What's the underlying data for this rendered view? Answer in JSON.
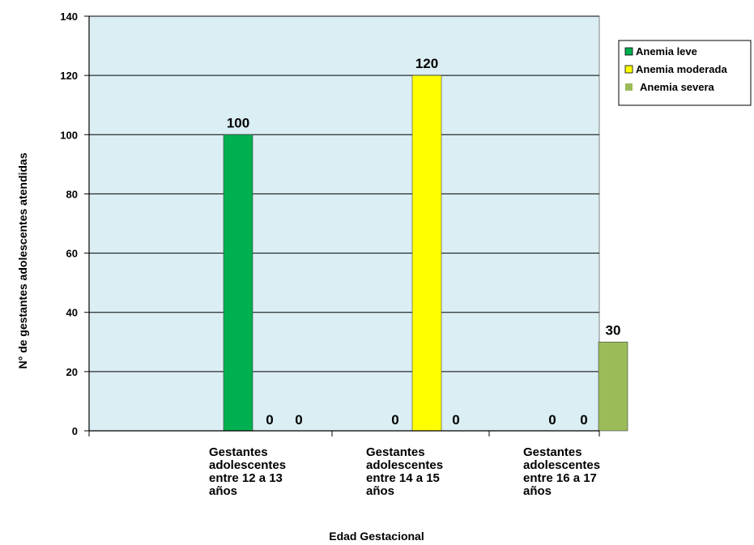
{
  "chart_data": {
    "type": "bar",
    "categories": [
      [
        "Gestantes",
        "adolescentes",
        "entre 12 a 13",
        "años"
      ],
      [
        "Gestantes",
        "adolescentes",
        "entre 14 a 15",
        "años"
      ],
      [
        "Gestantes",
        "adolescentes",
        "entre 16 a 17",
        "años"
      ]
    ],
    "series": [
      {
        "name": "Anemia leve",
        "color": "#00b050",
        "values": [
          100,
          0,
          0
        ]
      },
      {
        "name": "Anemia moderada",
        "color": "#ffff00",
        "values": [
          0,
          120,
          0
        ]
      },
      {
        "name": "Anemia severa",
        "color": "#9bbb59",
        "values": [
          0,
          0,
          30
        ]
      }
    ],
    "data_labels": [
      "100",
      "0",
      "0",
      "0",
      "120",
      "0",
      "0",
      "0",
      "30"
    ],
    "y_ticks": [
      "0",
      "20",
      "40",
      "60",
      "80",
      "100",
      "120",
      "140"
    ],
    "ylim": [
      0,
      140
    ],
    "xlabel": "Edad Gestacional",
    "ylabel": "N° de gestantes adolescentes atendidas",
    "plot_background": "#daeef3",
    "grid": true,
    "legend_position": "right"
  }
}
